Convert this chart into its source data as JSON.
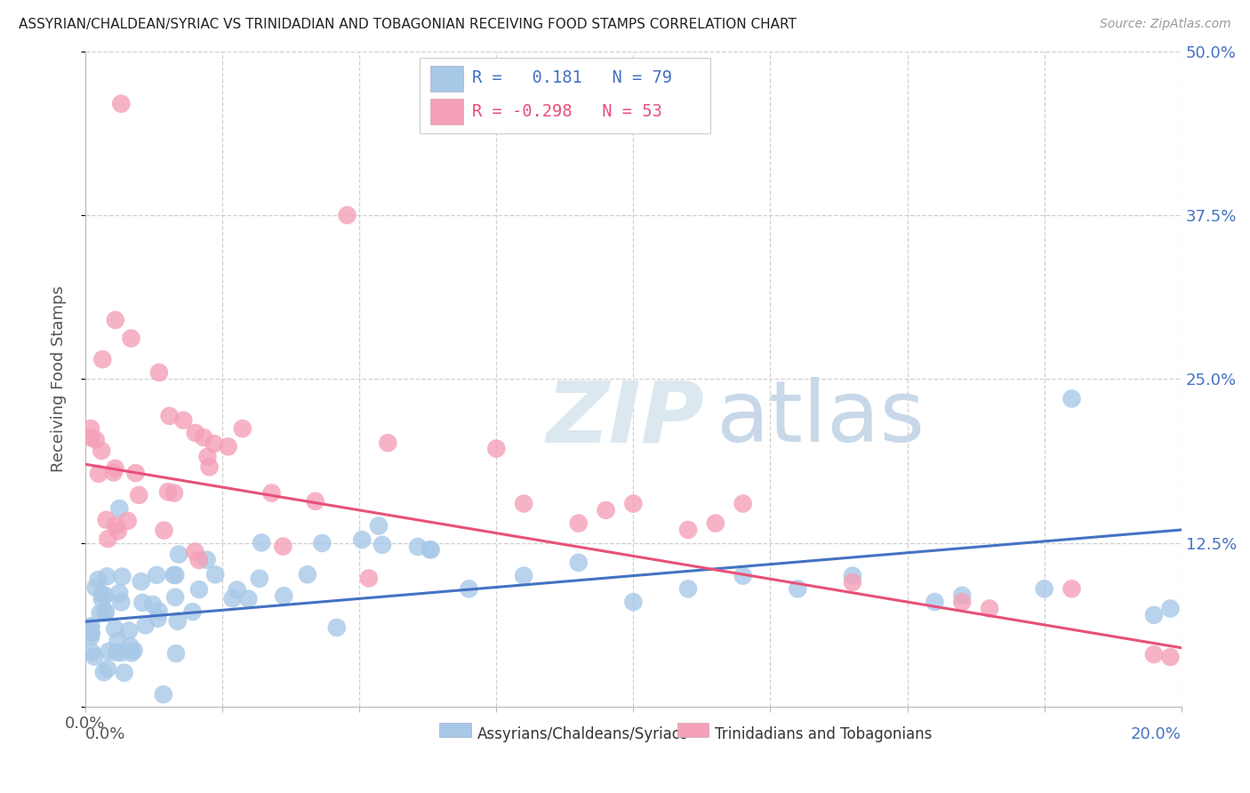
{
  "title": "ASSYRIAN/CHALDEAN/SYRIAC VS TRINIDADIAN AND TOBAGONIAN RECEIVING FOOD STAMPS CORRELATION CHART",
  "source": "Source: ZipAtlas.com",
  "ylabel": "Receiving Food Stamps",
  "xlim": [
    0.0,
    0.2
  ],
  "ylim": [
    0.0,
    0.5
  ],
  "xticks": [
    0.0,
    0.025,
    0.05,
    0.075,
    0.1,
    0.125,
    0.15,
    0.175,
    0.2
  ],
  "yticks": [
    0.0,
    0.125,
    0.25,
    0.375,
    0.5
  ],
  "ytick_labels": [
    "",
    "12.5%",
    "25.0%",
    "37.5%",
    "50.0%"
  ],
  "blue_R": 0.181,
  "blue_N": 79,
  "pink_R": -0.298,
  "pink_N": 53,
  "blue_color": "#a8c8e8",
  "pink_color": "#f4a0b8",
  "blue_line_color": "#4472C4",
  "pink_line_color": "#E8507A",
  "legend_blue_label": "Assyrians/Chaldeans/Syriacs",
  "legend_pink_label": "Trinidadians and Tobagonians",
  "background_color": "#ffffff",
  "grid_color": "#d0d0d0",
  "title_color": "#222222",
  "watermark_zip_color": "#dce8f0",
  "watermark_atlas_color": "#c8d8e8",
  "blue_line_start_y": 0.065,
  "blue_line_end_y": 0.135,
  "pink_line_start_y": 0.185,
  "pink_line_end_y": 0.045
}
